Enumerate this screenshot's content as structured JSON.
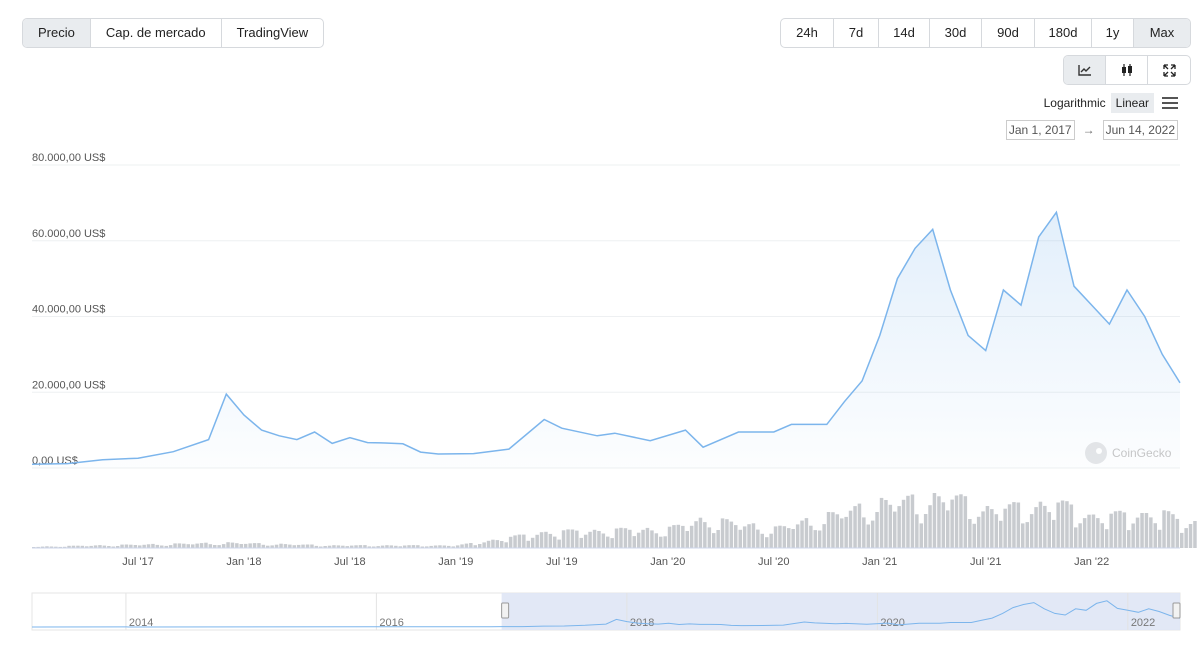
{
  "tabs": [
    {
      "label": "Precio",
      "active": true
    },
    {
      "label": "Cap. de mercado",
      "active": false
    },
    {
      "label": "TradingView",
      "active": false
    }
  ],
  "ranges": [
    {
      "label": "24h",
      "active": false
    },
    {
      "label": "7d",
      "active": false
    },
    {
      "label": "14d",
      "active": false
    },
    {
      "label": "30d",
      "active": false
    },
    {
      "label": "90d",
      "active": false
    },
    {
      "label": "180d",
      "active": false
    },
    {
      "label": "1y",
      "active": false
    },
    {
      "label": "Max",
      "active": true
    }
  ],
  "chart_type_buttons": [
    {
      "icon": "line-chart-icon",
      "active": true
    },
    {
      "icon": "candlestick-icon",
      "active": false
    },
    {
      "icon": "fullscreen-icon",
      "active": false
    }
  ],
  "scale": {
    "logarithmic": "Logarithmic",
    "linear": "Linear",
    "active": "Linear",
    "menu_icon": "hamburger-menu-icon"
  },
  "date_range": {
    "from": "Jan 1, 2017",
    "to": "Jun 14, 2022",
    "arrow": "→"
  },
  "watermark": "CoinGecko",
  "colors": {
    "line": "#7cb5ec",
    "volume": "#c8cbcf",
    "navigator_mask": "#dfe6f5"
  },
  "chart_data": {
    "type": "area",
    "title": "",
    "xlabel": "",
    "ylabel": "",
    "ylim": [
      0,
      80000
    ],
    "y_ticks": [
      "0,00 US$",
      "20.000,00 US$",
      "40.000,00 US$",
      "60.000,00 US$",
      "80.000,00 US$"
    ],
    "y_tick_values": [
      0,
      20000,
      40000,
      60000,
      80000
    ],
    "x_ticks": [
      "Jul '17",
      "Jan '18",
      "Jul '18",
      "Jan '19",
      "Jul '19",
      "Jan '20",
      "Jul '20",
      "Jan '21",
      "Jul '21",
      "Jan '22"
    ],
    "x_tick_values": [
      "2017-07",
      "2018-01",
      "2018-07",
      "2019-01",
      "2019-07",
      "2020-01",
      "2020-07",
      "2021-01",
      "2021-07",
      "2022-01"
    ],
    "grid": true,
    "series": [
      {
        "points": [
          [
            "2017-01",
            1000
          ],
          [
            "2017-03",
            1150
          ],
          [
            "2017-05",
            2200
          ],
          [
            "2017-07",
            2600
          ],
          [
            "2017-09",
            4300
          ],
          [
            "2017-11",
            7500
          ],
          [
            "2017-12",
            19500
          ],
          [
            "2018-01",
            14000
          ],
          [
            "2018-02",
            10000
          ],
          [
            "2018-03",
            8500
          ],
          [
            "2018-04",
            7500
          ],
          [
            "2018-05",
            9500
          ],
          [
            "2018-06",
            6500
          ],
          [
            "2018-07",
            8000
          ],
          [
            "2018-08",
            6700
          ],
          [
            "2018-09",
            6600
          ],
          [
            "2018-10",
            6400
          ],
          [
            "2018-11",
            4200
          ],
          [
            "2018-12",
            3700
          ],
          [
            "2019-02",
            3800
          ],
          [
            "2019-04",
            5000
          ],
          [
            "2019-06",
            12800
          ],
          [
            "2019-07",
            10500
          ],
          [
            "2019-09",
            8500
          ],
          [
            "2019-10",
            9200
          ],
          [
            "2019-12",
            7200
          ],
          [
            "2020-02",
            10000
          ],
          [
            "2020-03",
            5500
          ],
          [
            "2020-05",
            9500
          ],
          [
            "2020-07",
            9500
          ],
          [
            "2020-08",
            11500
          ],
          [
            "2020-10",
            11500
          ],
          [
            "2020-11",
            17500
          ],
          [
            "2020-12",
            23000
          ],
          [
            "2021-01",
            35000
          ],
          [
            "2021-02",
            50000
          ],
          [
            "2021-03",
            58000
          ],
          [
            "2021-04",
            63000
          ],
          [
            "2021-05",
            47000
          ],
          [
            "2021-06",
            35000
          ],
          [
            "2021-07",
            31000
          ],
          [
            "2021-08",
            47000
          ],
          [
            "2021-09",
            43000
          ],
          [
            "2021-10",
            61000
          ],
          [
            "2021-11",
            67500
          ],
          [
            "2021-12",
            48000
          ],
          [
            "2022-01",
            43000
          ],
          [
            "2022-02",
            38000
          ],
          [
            "2022-03",
            47000
          ],
          [
            "2022-04",
            40000
          ],
          [
            "2022-05",
            30000
          ],
          [
            "2022-06",
            22500
          ]
        ]
      }
    ],
    "volume_relative": [
      [
        "2017-01",
        0.02
      ],
      [
        "2017-12",
        0.08
      ],
      [
        "2018-06",
        0.04
      ],
      [
        "2019-01",
        0.04
      ],
      [
        "2019-06",
        0.25
      ],
      [
        "2020-01",
        0.3
      ],
      [
        "2020-03",
        0.45
      ],
      [
        "2020-07",
        0.3
      ],
      [
        "2021-01",
        0.7
      ],
      [
        "2021-05",
        0.8
      ],
      [
        "2021-07",
        0.6
      ],
      [
        "2021-11",
        0.7
      ],
      [
        "2022-01",
        0.5
      ],
      [
        "2022-05",
        0.55
      ],
      [
        "2022-06",
        0.4
      ]
    ],
    "navigator": {
      "x_ticks": [
        "2014",
        "2016",
        "2018",
        "2020",
        "2022"
      ],
      "x_tick_values": [
        "2014-01",
        "2016-01",
        "2018-01",
        "2020-01",
        "2022-01"
      ],
      "range": [
        "2013-04",
        "2022-06"
      ],
      "selection": [
        "2017-01",
        "2022-06"
      ]
    }
  }
}
